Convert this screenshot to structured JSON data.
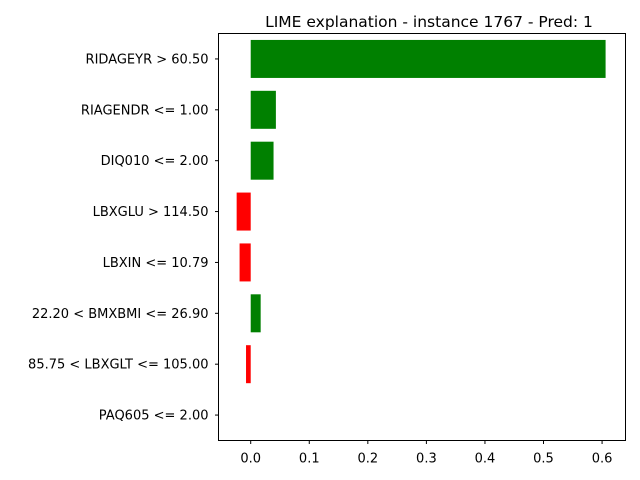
{
  "chart_data": {
    "type": "bar",
    "orientation": "horizontal",
    "title": "LIME explanation - instance 1767 - Pred: 1",
    "xlabel": "",
    "ylabel": "",
    "categories": [
      "RIDAGEYR > 60.50",
      "RIAGENDR <= 1.00",
      "DIQ010 <= 2.00",
      "LBXGLU > 114.50",
      "LBXIN <= 10.79",
      "22.20 < BMXBMI <= 26.90",
      "85.75 < LBXGLT <= 105.00",
      "PAQ605 <= 2.00"
    ],
    "values": [
      0.606,
      0.043,
      0.039,
      -0.024,
      -0.019,
      0.017,
      -0.008,
      0.0
    ],
    "xlim": [
      -0.055,
      0.64
    ],
    "xticks": [
      0.0,
      0.1,
      0.2,
      0.3,
      0.4,
      0.5,
      0.6
    ],
    "xtick_labels": [
      "0.0",
      "0.1",
      "0.2",
      "0.3",
      "0.4",
      "0.5",
      "0.6"
    ],
    "colors": {
      "positive": "#008000",
      "negative": "#ff0000"
    },
    "grid": false,
    "legend": "none"
  }
}
